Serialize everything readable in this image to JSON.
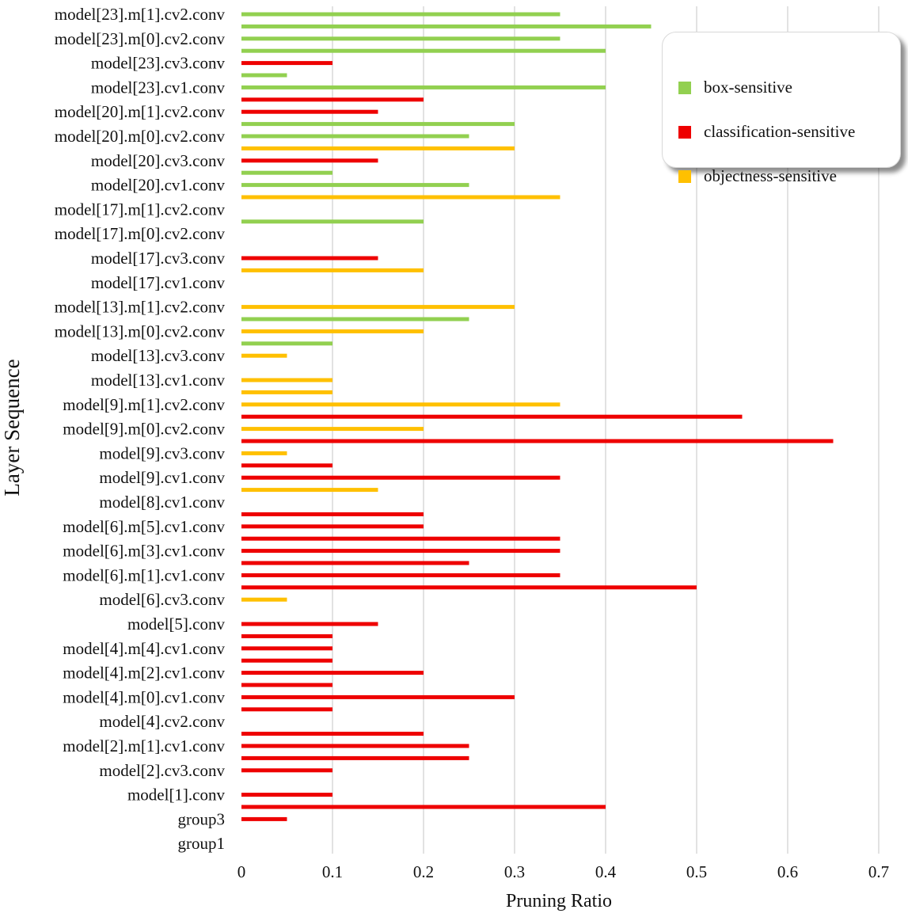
{
  "chart_data": {
    "type": "bar",
    "orientation": "horizontal",
    "title": "",
    "xlabel": "Pruning Ratio",
    "ylabel": "Layer Sequence",
    "xlim": [
      0,
      0.7
    ],
    "xticks": [
      "0",
      "0.1",
      "0.2",
      "0.3",
      "0.4",
      "0.5",
      "0.6",
      "0.7"
    ],
    "grid": "vertical",
    "legend_position": "top-right",
    "y_tick_labels": [
      "model[23].m[1].cv2.conv",
      "model[23].m[0].cv2.conv",
      "model[23].cv3.conv",
      "model[23].cv1.conv",
      "model[20].m[1].cv2.conv",
      "model[20].m[0].cv2.conv",
      "model[20].cv3.conv",
      "model[20].cv1.conv",
      "model[17].m[1].cv2.conv",
      "model[17].m[0].cv2.conv",
      "model[17].cv3.conv",
      "model[17].cv1.conv",
      "model[13].m[1].cv2.conv",
      "model[13].m[0].cv2.conv",
      "model[13].cv3.conv",
      "model[13].cv1.conv",
      "model[9].m[1].cv2.conv",
      "model[9].m[0].cv2.conv",
      "model[9].cv3.conv",
      "model[9].cv1.conv",
      "model[8].cv1.conv",
      "model[6].m[5].cv1.conv",
      "model[6].m[3].cv1.conv",
      "model[6].m[1].cv1.conv",
      "model[6].cv3.conv",
      "model[5].conv",
      "model[4].m[4].cv1.conv",
      "model[4].m[2].cv1.conv",
      "model[4].m[0].cv1.conv",
      "model[4].cv2.conv",
      "model[2].m[1].cv1.conv",
      "model[2].cv3.conv",
      "model[1].conv",
      "group3",
      "group1"
    ],
    "series": [
      {
        "name": "box-sensitive",
        "color": "#92d050"
      },
      {
        "name": "classification-sensitive",
        "color": "#ee0000"
      },
      {
        "name": "objectness-sensitive",
        "color": "#ffc000"
      }
    ],
    "bars": [
      {
        "row": 0,
        "value": 0.35,
        "series": 0
      },
      {
        "row": 0.5,
        "value": 0.45,
        "series": 0
      },
      {
        "row": 1,
        "value": 0.35,
        "series": 0
      },
      {
        "row": 1.5,
        "value": 0.4,
        "series": 0
      },
      {
        "row": 2,
        "value": 0.1,
        "series": 1
      },
      {
        "row": 2.5,
        "value": 0.05,
        "series": 0
      },
      {
        "row": 3,
        "value": 0.4,
        "series": 0
      },
      {
        "row": 3.5,
        "value": 0.2,
        "series": 1
      },
      {
        "row": 4,
        "value": 0.15,
        "series": 1
      },
      {
        "row": 4.5,
        "value": 0.3,
        "series": 0
      },
      {
        "row": 5,
        "value": 0.25,
        "series": 0
      },
      {
        "row": 5.5,
        "value": 0.3,
        "series": 2
      },
      {
        "row": 6,
        "value": 0.15,
        "series": 1
      },
      {
        "row": 6.5,
        "value": 0.1,
        "series": 0
      },
      {
        "row": 7,
        "value": 0.25,
        "series": 0
      },
      {
        "row": 7.5,
        "value": 0.35,
        "series": 2
      },
      {
        "row": 8.5,
        "value": 0.2,
        "series": 0
      },
      {
        "row": 10,
        "value": 0.15,
        "series": 1
      },
      {
        "row": 10.5,
        "value": 0.2,
        "series": 2
      },
      {
        "row": 12,
        "value": 0.3,
        "series": 2
      },
      {
        "row": 12.5,
        "value": 0.25,
        "series": 0
      },
      {
        "row": 13,
        "value": 0.2,
        "series": 2
      },
      {
        "row": 13.5,
        "value": 0.1,
        "series": 0
      },
      {
        "row": 14,
        "value": 0.05,
        "series": 2
      },
      {
        "row": 15,
        "value": 0.1,
        "series": 2
      },
      {
        "row": 15.5,
        "value": 0.1,
        "series": 2
      },
      {
        "row": 16,
        "value": 0.35,
        "series": 2
      },
      {
        "row": 16.5,
        "value": 0.55,
        "series": 1
      },
      {
        "row": 17,
        "value": 0.2,
        "series": 2
      },
      {
        "row": 17.5,
        "value": 0.65,
        "series": 1
      },
      {
        "row": 18,
        "value": 0.05,
        "series": 2
      },
      {
        "row": 18.5,
        "value": 0.1,
        "series": 1
      },
      {
        "row": 19,
        "value": 0.35,
        "series": 1
      },
      {
        "row": 19.5,
        "value": 0.15,
        "series": 2
      },
      {
        "row": 20.5,
        "value": 0.2,
        "series": 1
      },
      {
        "row": 21,
        "value": 0.2,
        "series": 1
      },
      {
        "row": 21.5,
        "value": 0.35,
        "series": 1
      },
      {
        "row": 22,
        "value": 0.35,
        "series": 1
      },
      {
        "row": 22.5,
        "value": 0.25,
        "series": 1
      },
      {
        "row": 23,
        "value": 0.35,
        "series": 1
      },
      {
        "row": 23.5,
        "value": 0.5,
        "series": 1
      },
      {
        "row": 24,
        "value": 0.05,
        "series": 2
      },
      {
        "row": 25,
        "value": 0.15,
        "series": 1
      },
      {
        "row": 25.5,
        "value": 0.1,
        "series": 1
      },
      {
        "row": 26,
        "value": 0.1,
        "series": 1
      },
      {
        "row": 26.5,
        "value": 0.1,
        "series": 1
      },
      {
        "row": 27,
        "value": 0.2,
        "series": 1
      },
      {
        "row": 27.5,
        "value": 0.1,
        "series": 1
      },
      {
        "row": 28,
        "value": 0.3,
        "series": 1
      },
      {
        "row": 28.5,
        "value": 0.1,
        "series": 1
      },
      {
        "row": 29.5,
        "value": 0.2,
        "series": 1
      },
      {
        "row": 30,
        "value": 0.25,
        "series": 1
      },
      {
        "row": 30.5,
        "value": 0.25,
        "series": 1
      },
      {
        "row": 31,
        "value": 0.1,
        "series": 1
      },
      {
        "row": 32,
        "value": 0.1,
        "series": 1
      },
      {
        "row": 32.5,
        "value": 0.4,
        "series": 1
      },
      {
        "row": 33,
        "value": 0.05,
        "series": 1
      }
    ]
  }
}
